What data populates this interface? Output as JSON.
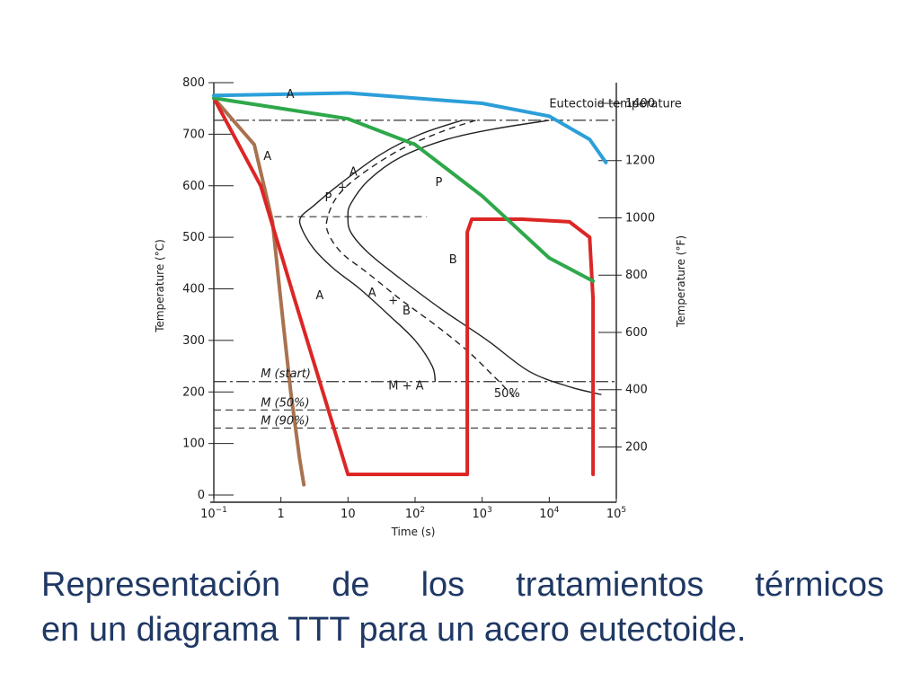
{
  "caption": {
    "line1": "Representación de los tratamientos térmicos",
    "line2": "en un diagrama TTT para un acero eutectoide."
  },
  "chart_data": {
    "type": "line",
    "title": "",
    "xlabel": "Time (s)",
    "ylabel_left": "Temperature (°C)",
    "ylabel_right": "Temperature (°F)",
    "xscale": "log",
    "xlim": [
      0.1,
      100000
    ],
    "ylim": [
      0,
      800
    ],
    "x_ticks": [
      {
        "value": 0.1,
        "base": "10",
        "exp": "−1"
      },
      {
        "value": 1,
        "base": "1",
        "exp": ""
      },
      {
        "value": 10,
        "base": "10",
        "exp": ""
      },
      {
        "value": 100,
        "base": "10",
        "exp": "2"
      },
      {
        "value": 1000,
        "base": "10",
        "exp": "3"
      },
      {
        "value": 10000,
        "base": "10",
        "exp": "4"
      },
      {
        "value": 100000,
        "base": "10",
        "exp": "5"
      }
    ],
    "y_ticks_left": [
      0,
      100,
      200,
      300,
      400,
      500,
      600,
      700,
      800
    ],
    "y_ticks_right_f": [
      200,
      400,
      600,
      800,
      1000,
      1200,
      1400
    ],
    "reference_lines": [
      {
        "name": "Eutectoid temperature",
        "y": 727,
        "style": "dashdot"
      },
      {
        "name": "M (start)",
        "y": 220,
        "style": "dashdot"
      },
      {
        "name": "M (50%)",
        "y": 165,
        "style": "dashed"
      },
      {
        "name": "M (90%)",
        "y": 130,
        "style": "dashed"
      },
      {
        "name": "",
        "y": 540,
        "style": "dashed",
        "x_range": [
          0.8,
          150
        ]
      }
    ],
    "region_labels": [
      {
        "text": "A",
        "x": 1.2,
        "y": 770
      },
      {
        "text": "A",
        "x": 0.55,
        "y": 650
      },
      {
        "text": "P",
        "x": 200,
        "y": 600
      },
      {
        "text": "P",
        "x": 4.5,
        "y": 570
      },
      {
        "text": "+",
        "x": 7,
        "y": 590
      },
      {
        "text": "A",
        "x": 10.5,
        "y": 620
      },
      {
        "text": "B",
        "x": 320,
        "y": 450
      },
      {
        "text": "A",
        "x": 3.3,
        "y": 380
      },
      {
        "text": "A",
        "x": 20,
        "y": 385
      },
      {
        "text": "+",
        "x": 40,
        "y": 370
      },
      {
        "text": "B",
        "x": 65,
        "y": 350
      },
      {
        "text": "M + A",
        "x": 40,
        "y": 205
      },
      {
        "text": "50%",
        "x": 1500,
        "y": 190
      },
      {
        "text": "M (start)",
        "x": 0.5,
        "y": 228
      },
      {
        "text": "M (50%)",
        "x": 0.5,
        "y": 172
      },
      {
        "text": "M (90%)",
        "x": 0.5,
        "y": 137
      },
      {
        "text": "Eutectoid temperature",
        "x": 10000,
        "y": 752
      }
    ],
    "ttt_curves": [
      {
        "name": "start",
        "style": "solid",
        "points": [
          [
            500,
            727
          ],
          [
            120,
            700
          ],
          [
            30,
            660
          ],
          [
            7,
            600
          ],
          [
            3,
            560
          ],
          [
            2,
            540
          ],
          [
            2,
            520
          ],
          [
            3,
            480
          ],
          [
            6,
            440
          ],
          [
            15,
            400
          ],
          [
            40,
            350
          ],
          [
            100,
            300
          ],
          [
            180,
            250
          ],
          [
            200,
            220
          ]
        ]
      },
      {
        "name": "50%",
        "style": "dashed",
        "points": [
          [
            800,
            727
          ],
          [
            250,
            705
          ],
          [
            60,
            670
          ],
          [
            15,
            620
          ],
          [
            7,
            580
          ],
          [
            5,
            540
          ],
          [
            5,
            510
          ],
          [
            8,
            470
          ],
          [
            20,
            430
          ],
          [
            60,
            380
          ],
          [
            200,
            330
          ],
          [
            600,
            280
          ],
          [
            1500,
            230
          ],
          [
            3000,
            190
          ]
        ]
      },
      {
        "name": "finish",
        "style": "solid",
        "points": [
          [
            10000,
            727
          ],
          [
            1500,
            710
          ],
          [
            300,
            690
          ],
          [
            60,
            655
          ],
          [
            20,
            610
          ],
          [
            11,
            565
          ],
          [
            10,
            540
          ],
          [
            11,
            510
          ],
          [
            20,
            470
          ],
          [
            60,
            420
          ],
          [
            250,
            360
          ],
          [
            1200,
            300
          ],
          [
            5000,
            240
          ],
          [
            20000,
            210
          ],
          [
            60000,
            195
          ]
        ]
      }
    ],
    "cooling_paths": [
      {
        "color": "#a9724f",
        "points": [
          [
            0.1,
            770
          ],
          [
            0.4,
            680
          ],
          [
            0.75,
            530
          ],
          [
            1.05,
            350
          ],
          [
            1.4,
            200
          ],
          [
            1.9,
            70
          ],
          [
            2.2,
            20
          ]
        ]
      },
      {
        "color": "#dc2626",
        "points": [
          [
            0.1,
            770
          ],
          [
            0.5,
            600
          ],
          [
            1.6,
            380
          ],
          [
            4,
            210
          ],
          [
            10,
            40
          ],
          [
            600,
            40
          ],
          [
            600,
            510
          ],
          [
            700,
            535
          ],
          [
            4000,
            535
          ],
          [
            20000,
            530
          ],
          [
            40000,
            500
          ],
          [
            45000,
            380
          ],
          [
            45000,
            40
          ]
        ]
      },
      {
        "color": "#2ea84a",
        "points": [
          [
            0.1,
            770
          ],
          [
            10,
            730
          ],
          [
            100,
            680
          ],
          [
            1000,
            580
          ],
          [
            10000,
            460
          ],
          [
            45000,
            415
          ]
        ]
      },
      {
        "color": "#2c9fd9",
        "points": [
          [
            0.1,
            775
          ],
          [
            10,
            780
          ],
          [
            1000,
            760
          ],
          [
            10000,
            735
          ],
          [
            40000,
            690
          ],
          [
            70000,
            645
          ]
        ]
      }
    ]
  }
}
